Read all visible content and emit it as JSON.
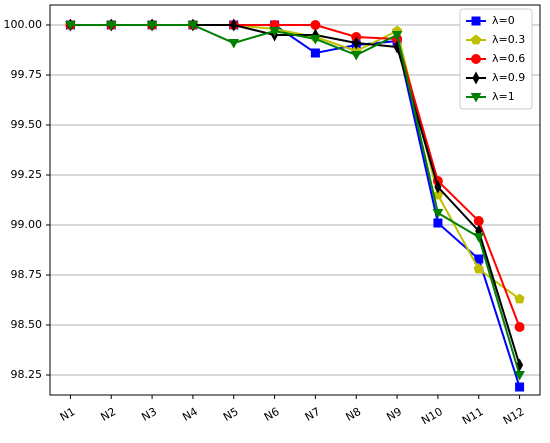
{
  "chart_data": {
    "type": "line",
    "categories": [
      "N1",
      "N2",
      "N3",
      "N4",
      "N5",
      "N6",
      "N7",
      "N8",
      "N9",
      "N10",
      "N11",
      "N12"
    ],
    "ylim": [
      98.15,
      100.1
    ],
    "yticks": [
      {
        "value": 98.25,
        "label": "98.25"
      },
      {
        "value": 98.5,
        "label": "98.50"
      },
      98.75,
      {
        "value": 99,
        "label": "99.00"
      },
      99.25,
      {
        "value": 99.5,
        "label": "99.50"
      },
      99.75,
      {
        "value": 100,
        "label": "100.00"
      }
    ],
    "grid": true,
    "legend": "upper right",
    "series": [
      {
        "name": "λ=0",
        "color": "#0000ff",
        "marker": "square",
        "values": [
          100,
          100,
          100,
          100,
          100,
          100,
          99.86,
          99.9,
          99.92,
          99.01,
          98.83,
          98.19
        ]
      },
      {
        "name": "λ=0.3",
        "color": "#bfbf00",
        "marker": "pentagon",
        "values": [
          100,
          100,
          100,
          100,
          100,
          99.98,
          99.94,
          99.87,
          99.97,
          99.15,
          98.78,
          98.63
        ]
      },
      {
        "name": "λ=0.6",
        "color": "#ff0000",
        "marker": "circle",
        "values": [
          100,
          100,
          100,
          100,
          100,
          100,
          100,
          99.94,
          99.93,
          99.22,
          99.02,
          98.49
        ]
      },
      {
        "name": "λ=0.9",
        "color": "#000000",
        "marker": "diamond",
        "values": [
          100,
          100,
          100,
          100,
          100,
          99.95,
          99.95,
          99.91,
          99.89,
          99.19,
          98.97,
          98.3
        ]
      },
      {
        "name": "λ=1",
        "color": "#008000",
        "marker": "triangle-down",
        "values": [
          100,
          100,
          100,
          100,
          99.91,
          99.97,
          99.93,
          99.85,
          99.95,
          99.06,
          98.94,
          98.25
        ]
      }
    ]
  }
}
